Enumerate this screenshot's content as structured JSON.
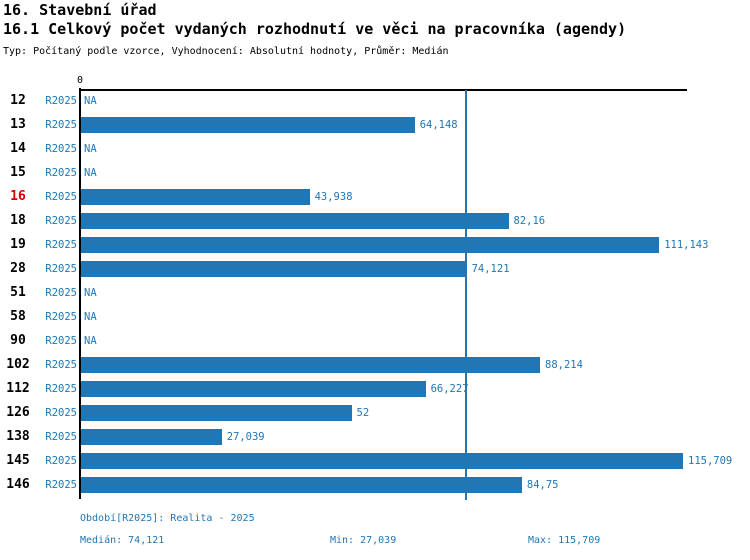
{
  "header": {
    "title_line1": "16. Stavební úřad",
    "title_line2": "16.1 Celkový počet vydaných rozhodnutí ve věci na pracovníka (agendy)",
    "subtitle": "Typ: Počítaný podle vzorce, Vyhodnocení: Absolutní hodnoty, Průměr: Medián"
  },
  "colors": {
    "bar_blue": "#2077b4",
    "text_blue": "#2077b4",
    "highlight_red": "#d40000",
    "axis_black": "#000000",
    "background": "#ffffff"
  },
  "chart_data": {
    "type": "bar",
    "orientation": "horizontal",
    "origin_label": "0",
    "axis_min": 0,
    "axis_max_value": 115.709,
    "decimal_separator": ",",
    "median_value": 74.121,
    "period_code": "R2025",
    "rows": [
      {
        "id": "12",
        "period": "R2025",
        "value": null,
        "label": "NA",
        "highlight": false
      },
      {
        "id": "13",
        "period": "R2025",
        "value": 64.148,
        "label": "64,148",
        "highlight": false
      },
      {
        "id": "14",
        "period": "R2025",
        "value": null,
        "label": "NA",
        "highlight": false
      },
      {
        "id": "15",
        "period": "R2025",
        "value": null,
        "label": "NA",
        "highlight": false
      },
      {
        "id": "16",
        "period": "R2025",
        "value": 43.938,
        "label": "43,938",
        "highlight": true
      },
      {
        "id": "18",
        "period": "R2025",
        "value": 82.16,
        "label": "82,16",
        "highlight": false
      },
      {
        "id": "19",
        "period": "R2025",
        "value": 111.143,
        "label": "111,143",
        "highlight": false
      },
      {
        "id": "28",
        "period": "R2025",
        "value": 74.121,
        "label": "74,121",
        "highlight": false
      },
      {
        "id": "51",
        "period": "R2025",
        "value": null,
        "label": "NA",
        "highlight": false
      },
      {
        "id": "58",
        "period": "R2025",
        "value": null,
        "label": "NA",
        "highlight": false
      },
      {
        "id": "90",
        "period": "R2025",
        "value": null,
        "label": "NA",
        "highlight": false
      },
      {
        "id": "102",
        "period": "R2025",
        "value": 88.214,
        "label": "88,214",
        "highlight": false
      },
      {
        "id": "112",
        "period": "R2025",
        "value": 66.227,
        "label": "66,227",
        "highlight": false
      },
      {
        "id": "126",
        "period": "R2025",
        "value": 52,
        "label": "52",
        "highlight": false
      },
      {
        "id": "138",
        "period": "R2025",
        "value": 27.039,
        "label": "27,039",
        "highlight": false
      },
      {
        "id": "145",
        "period": "R2025",
        "value": 115.709,
        "label": "115,709",
        "highlight": false
      },
      {
        "id": "146",
        "period": "R2025",
        "value": 84.75,
        "label": "84,75",
        "highlight": false
      }
    ]
  },
  "footer": {
    "period_line": "Období[R2025]: Realita - 2025",
    "median": "Medián: 74,121",
    "min": "Min: 27,039",
    "max": "Max: 115,709"
  }
}
